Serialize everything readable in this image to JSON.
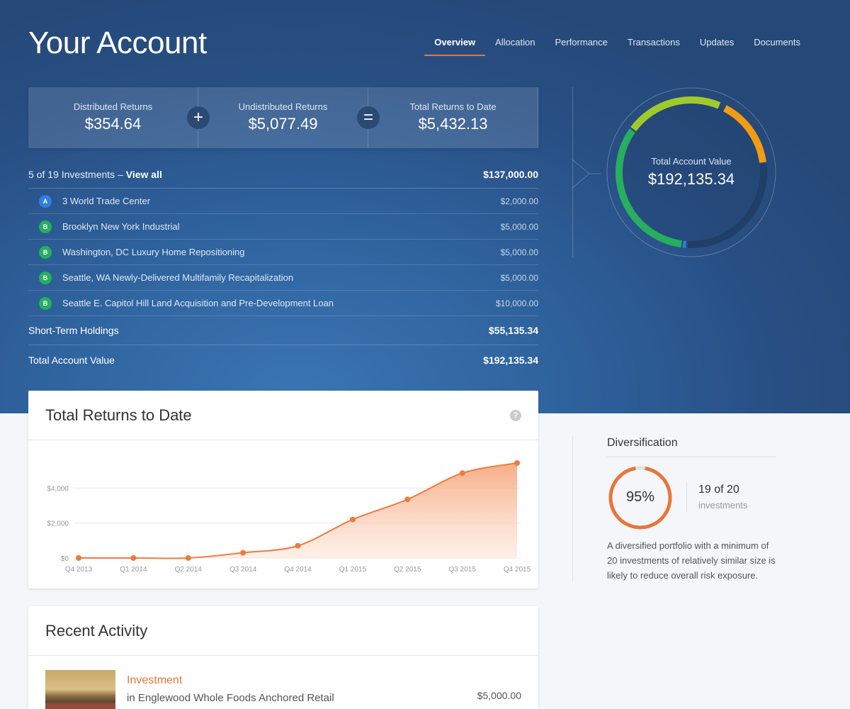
{
  "header": {
    "title": "Your Account",
    "tabs": [
      "Overview",
      "Allocation",
      "Performance",
      "Transactions",
      "Updates",
      "Documents"
    ],
    "active_tab": "Overview"
  },
  "summary": {
    "distributed_label": "Distributed Returns",
    "distributed_value": "$354.64",
    "plus_symbol": "+",
    "undistributed_label": "Undistributed Returns",
    "undistributed_value": "$5,077.49",
    "equals_symbol": "=",
    "total_label": "Total Returns to Date",
    "total_value": "$5,432.13"
  },
  "investments": {
    "count_text": "5 of 19 Investments –",
    "view_all": "View all",
    "total": "$137,000.00",
    "items": [
      {
        "grade": "A",
        "grade_color": "#2f7fe0",
        "name": "3 World Trade Center",
        "amount": "$2,000.00"
      },
      {
        "grade": "B",
        "grade_color": "#27ae5f",
        "name": "Brooklyn New York Industrial",
        "amount": "$5,000.00"
      },
      {
        "grade": "B",
        "grade_color": "#27ae5f",
        "name": "Washington, DC Luxury Home Repositioning",
        "amount": "$5,000.00"
      },
      {
        "grade": "B",
        "grade_color": "#27ae5f",
        "name": "Seattle, WA Newly-Delivered Multifamily Recapitalization",
        "amount": "$5,000.00"
      },
      {
        "grade": "B",
        "grade_color": "#27ae5f",
        "name": "Seattle E. Capitol Hill Land Acquisition and Pre-Development Loan",
        "amount": "$10,000.00"
      }
    ],
    "short_term_label": "Short-Term Holdings",
    "short_term_value": "$55,135.34",
    "total_account_label": "Total Account Value",
    "total_account_value": "$192,135.34"
  },
  "account_donut": {
    "label": "Total Account Value",
    "value": "$192,135.34",
    "segments": [
      {
        "color": "#f39c12",
        "fraction": 0.155
      },
      {
        "color": "#203f66",
        "fraction": 0.28
      },
      {
        "color": "#2f7fe0",
        "fraction": 0.01
      },
      {
        "color": "#27ae5f",
        "fraction": 0.33
      },
      {
        "color": "#9fcb2a",
        "fraction": 0.215
      }
    ]
  },
  "returns_card": {
    "title": "Total Returns to Date",
    "help_icon": "?"
  },
  "chart_data": {
    "type": "area",
    "title": "Total Returns to Date",
    "categories": [
      "Q4 2013",
      "Q1 2014",
      "Q2 2014",
      "Q3 2014",
      "Q4 2014",
      "Q1 2015",
      "Q2 2015",
      "Q3 2015",
      "Q4 2015"
    ],
    "values": [
      0,
      0,
      0,
      300,
      700,
      2200,
      3350,
      4850,
      5432
    ],
    "y_ticks": [
      "$0",
      "$2,000",
      "$4,000"
    ],
    "ylim": [
      0,
      5432
    ],
    "color": "#f07a3c",
    "grid": true
  },
  "diversification": {
    "title": "Diversification",
    "percent": "95%",
    "fraction": 0.95,
    "count": "19 of 20",
    "unit": "investments",
    "description": "A diversified portfolio with a minimum of 20 investments of relatively similar size is likely to reduce overall risk exposure."
  },
  "activity": {
    "title": "Recent Activity",
    "item_type": "Investment",
    "item_desc": "in Englewood Whole Foods Anchored Retail",
    "item_amount": "$5,000.00"
  }
}
